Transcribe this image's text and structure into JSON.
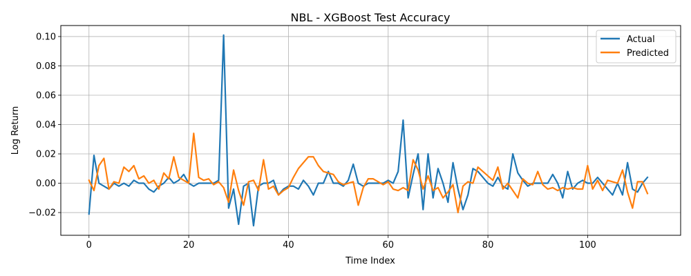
{
  "chart_data": {
    "type": "line",
    "title": "NBL - XGBoost Test Accuracy",
    "xlabel": "Time Index",
    "ylabel": "Log Return",
    "xlim": [
      -5.65,
      118.65
    ],
    "ylim": [
      -0.0355,
      0.1075
    ],
    "grid": true,
    "legend_position": "top-right",
    "x_ticks": [
      0,
      20,
      40,
      60,
      80,
      100
    ],
    "x_tick_labels": [
      "0",
      "20",
      "40",
      "60",
      "80",
      "100"
    ],
    "y_ticks": [
      -0.02,
      0.0,
      0.02,
      0.04,
      0.06,
      0.08,
      0.1
    ],
    "y_tick_labels": [
      "−0.02",
      "0.00",
      "0.02",
      "0.04",
      "0.06",
      "0.08",
      "0.10"
    ],
    "x": [
      0,
      1,
      2,
      3,
      4,
      5,
      6,
      7,
      8,
      9,
      10,
      11,
      12,
      13,
      14,
      15,
      16,
      17,
      18,
      19,
      20,
      21,
      22,
      23,
      24,
      25,
      26,
      27,
      28,
      29,
      30,
      31,
      32,
      33,
      34,
      35,
      36,
      37,
      38,
      39,
      40,
      41,
      42,
      43,
      44,
      45,
      46,
      47,
      48,
      49,
      50,
      51,
      52,
      53,
      54,
      55,
      56,
      57,
      58,
      59,
      60,
      61,
      62,
      63,
      64,
      65,
      66,
      67,
      68,
      69,
      70,
      71,
      72,
      73,
      74,
      75,
      76,
      77,
      78,
      79,
      80,
      81,
      82,
      83,
      84,
      85,
      86,
      87,
      88,
      89,
      90,
      91,
      92,
      93,
      94,
      95,
      96,
      97,
      98,
      99,
      100,
      101,
      102,
      103,
      104,
      105,
      106,
      107,
      108,
      109,
      110,
      111,
      112
    ],
    "series": [
      {
        "name": "Actual",
        "color": "#1f77b4",
        "values": [
          -0.021,
          0.019,
          0.0,
          -0.002,
          -0.004,
          0.0,
          -0.002,
          0.0,
          -0.002,
          0.002,
          0.0,
          0.0,
          -0.004,
          -0.006,
          -0.002,
          0.0,
          0.004,
          0.0,
          0.002,
          0.006,
          0.0,
          -0.002,
          0.0,
          0.0,
          0.0,
          0.0,
          0.002,
          0.101,
          -0.017,
          -0.004,
          -0.028,
          -0.002,
          0.0,
          -0.029,
          -0.002,
          0.0,
          0.0,
          0.002,
          -0.008,
          -0.004,
          -0.002,
          -0.002,
          -0.004,
          0.002,
          -0.002,
          -0.008,
          0.0,
          0.0,
          0.008,
          0.0,
          0.0,
          -0.002,
          0.002,
          0.013,
          0.0,
          -0.002,
          0.0,
          0.0,
          0.0,
          0.0,
          0.002,
          0.0,
          0.008,
          0.043,
          -0.01,
          0.006,
          0.02,
          -0.018,
          0.02,
          -0.01,
          0.01,
          0.0,
          -0.013,
          0.014,
          -0.004,
          -0.018,
          -0.008,
          0.01,
          0.008,
          0.004,
          0.0,
          -0.002,
          0.004,
          -0.002,
          -0.004,
          0.02,
          0.007,
          0.002,
          -0.002,
          0.0,
          0.0,
          0.0,
          0.0,
          0.006,
          0.0,
          -0.01,
          0.008,
          -0.004,
          0.0,
          0.002,
          0.0,
          0.0,
          0.004,
          0.0,
          -0.004,
          -0.008,
          0.0,
          -0.008,
          0.014,
          -0.004,
          -0.006,
          0.0,
          0.004
        ]
      },
      {
        "name": "Predicted",
        "color": "#ff7f0e",
        "values": [
          0.002,
          -0.005,
          0.012,
          0.017,
          -0.004,
          0.001,
          0.0,
          0.011,
          0.008,
          0.012,
          0.003,
          0.005,
          0.0,
          0.002,
          -0.004,
          0.007,
          0.003,
          0.018,
          0.004,
          0.002,
          0.0,
          0.034,
          0.004,
          0.002,
          0.003,
          -0.001,
          0.001,
          -0.003,
          -0.013,
          0.009,
          -0.005,
          -0.015,
          0.001,
          0.002,
          -0.005,
          0.016,
          -0.004,
          -0.002,
          -0.008,
          -0.005,
          -0.003,
          0.004,
          0.01,
          0.014,
          0.018,
          0.018,
          0.012,
          0.008,
          0.007,
          0.006,
          0.001,
          -0.001,
          0.0,
          0.001,
          -0.015,
          -0.003,
          0.003,
          0.003,
          0.001,
          -0.001,
          0.001,
          -0.004,
          -0.005,
          -0.003,
          -0.005,
          0.016,
          0.009,
          -0.004,
          0.005,
          -0.005,
          -0.003,
          -0.01,
          -0.006,
          -0.001,
          -0.02,
          -0.002,
          0.001,
          0.0,
          0.011,
          0.008,
          0.005,
          0.002,
          0.011,
          -0.004,
          0.0,
          -0.005,
          -0.01,
          0.003,
          0.0,
          -0.001,
          0.008,
          -0.001,
          -0.004,
          -0.003,
          -0.005,
          -0.003,
          -0.004,
          -0.003,
          -0.004,
          -0.004,
          0.012,
          -0.004,
          0.002,
          -0.005,
          0.002,
          0.001,
          0.0,
          0.009,
          -0.006,
          -0.017,
          0.001,
          0.001,
          -0.007
        ]
      }
    ]
  }
}
